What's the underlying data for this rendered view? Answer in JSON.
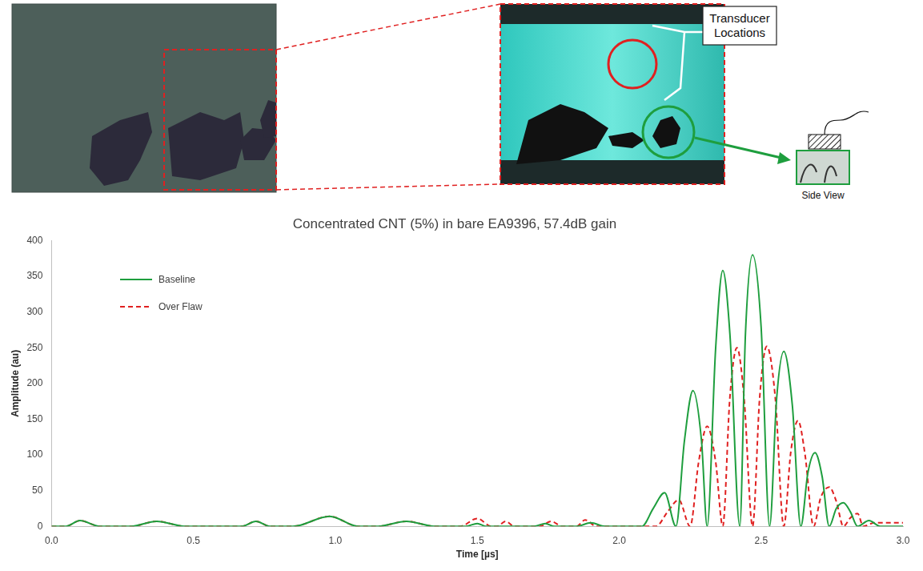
{
  "chart_data": {
    "type": "line",
    "title": "Concentrated CNT (5%) in bare EA9396, 57.4dB gain",
    "x_label": "Time [µs]",
    "y_label": "Amplitude (au)",
    "annotations": [
      "Transducer Locations",
      "Side View"
    ],
    "xlim": [
      0,
      3
    ],
    "xticks": [
      {
        "value": 0,
        "label": "0.0"
      },
      {
        "value": 0.5,
        "label": "0.5"
      },
      {
        "value": 1,
        "label": "1.0"
      },
      {
        "value": 1.5,
        "label": "1.5"
      },
      {
        "value": 2,
        "label": "2.0"
      },
      {
        "value": 2.5,
        "label": "2.5"
      },
      {
        "value": 3,
        "label": "3.0"
      }
    ],
    "ylim": [
      0,
      400
    ],
    "yticks": [
      0,
      50,
      100,
      150,
      200,
      250,
      300,
      350,
      400
    ],
    "grid": false,
    "legend": "upper left",
    "series": [
      {
        "name": "Baseline",
        "color": "#1e9e3e",
        "line_style": "solid",
        "x": [
          0,
          0.05,
          0.1,
          0.17,
          0.28,
          0.37,
          0.47,
          0.67,
          0.72,
          0.77,
          0.85,
          0.98,
          1.08,
          1.15,
          1.25,
          1.35,
          1.46,
          1.5,
          1.53,
          1.7,
          1.74,
          1.77,
          1.85,
          1.9,
          1.95,
          2.08,
          2.12,
          2.16,
          2.2,
          2.23,
          2.26,
          2.29,
          2.31,
          2.34,
          2.365,
          2.39,
          2.425,
          2.445,
          2.47,
          2.5,
          2.53,
          2.555,
          2.58,
          2.61,
          2.64,
          2.665,
          2.69,
          2.715,
          2.74,
          2.765,
          2.79,
          2.815,
          2.84,
          2.88,
          2.92,
          3.0
        ],
        "values": [
          0,
          0,
          8,
          0,
          0,
          7,
          0,
          0,
          7,
          0,
          0,
          14,
          0,
          0,
          7,
          0,
          0,
          4,
          0,
          0,
          4,
          0,
          0,
          5,
          0,
          0,
          25,
          47,
          0,
          120,
          190,
          120,
          0,
          250,
          358,
          270,
          0,
          270,
          380,
          280,
          0,
          180,
          245,
          170,
          0,
          75,
          103,
          70,
          0,
          25,
          33,
          20,
          0,
          8,
          0,
          0
        ]
      },
      {
        "name": "Over Flaw",
        "color": "#e02020",
        "line_style": "dashed",
        "x": [
          0,
          0.05,
          0.1,
          0.17,
          0.28,
          0.37,
          0.47,
          0.67,
          0.72,
          0.77,
          0.85,
          0.98,
          1.08,
          1.15,
          1.25,
          1.35,
          1.44,
          1.5,
          1.55,
          1.57,
          1.6,
          1.63,
          1.72,
          1.76,
          1.8,
          1.85,
          1.88,
          1.92,
          2.13,
          2.17,
          2.21,
          2.25,
          2.28,
          2.31,
          2.34,
          2.365,
          2.39,
          2.415,
          2.44,
          2.47,
          2.495,
          2.52,
          2.55,
          2.58,
          2.605,
          2.63,
          2.655,
          2.685,
          2.71,
          2.74,
          2.765,
          2.79,
          2.815,
          2.84,
          2.86,
          2.9,
          3.0
        ],
        "values": [
          0,
          0,
          8,
          0,
          0,
          7,
          0,
          0,
          7,
          0,
          0,
          14,
          0,
          0,
          7,
          0,
          0,
          11,
          0,
          0,
          7,
          0,
          0,
          7,
          0,
          0,
          9,
          0,
          0,
          20,
          37,
          0,
          90,
          140,
          90,
          0,
          180,
          250,
          180,
          0,
          180,
          252,
          180,
          0,
          105,
          148,
          100,
          0,
          40,
          55,
          35,
          0,
          12,
          18,
          0,
          5,
          5
        ]
      }
    ]
  }
}
